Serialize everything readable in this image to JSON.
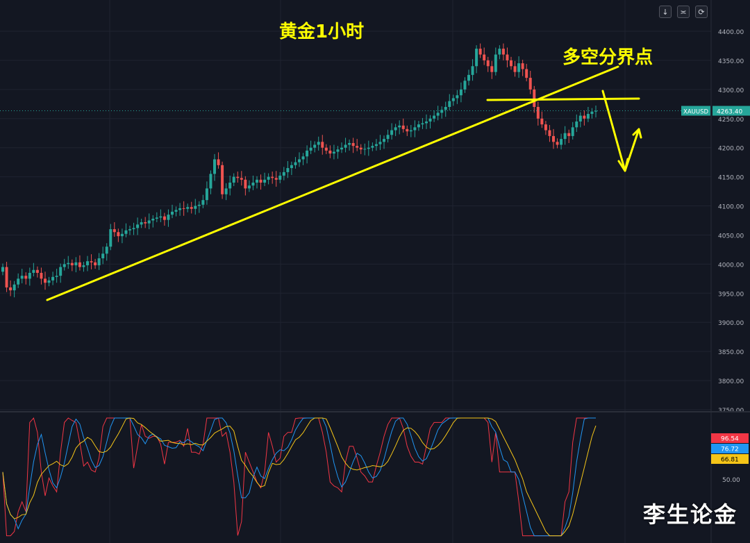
{
  "chart_data": [
    {
      "type": "candlestick",
      "title": "黄金1小时",
      "symbol": "XAUUSD",
      "last_price": "4263.40",
      "y_ticks": [
        "4400.00",
        "4350.00",
        "4300.00",
        "4250.00",
        "4200.00",
        "4150.00",
        "4100.00",
        "4050.00",
        "4000.00",
        "3950.00",
        "3900.00",
        "3850.00",
        "3800.00",
        "3750.00"
      ],
      "ylim": [
        3750,
        4400
      ],
      "grid": true,
      "closes": [
        3995,
        3960,
        3955,
        3965,
        3975,
        3980,
        3975,
        3985,
        3990,
        3985,
        3975,
        3968,
        3972,
        3978,
        3980,
        3995,
        4000,
        4002,
        3998,
        4003,
        3995,
        3998,
        4005,
        4003,
        3998,
        4010,
        4018,
        4030,
        4060,
        4055,
        4048,
        4052,
        4058,
        4060,
        4062,
        4068,
        4072,
        4070,
        4075,
        4078,
        4080,
        4082,
        4076,
        4085,
        4090,
        4093,
        4096,
        4095,
        4098,
        4095,
        4100,
        4102,
        4110,
        4130,
        4155,
        4180,
        4170,
        4120,
        4130,
        4140,
        4150,
        4148,
        4145,
        4130,
        4135,
        4140,
        4145,
        4140,
        4145,
        4150,
        4148,
        4145,
        4152,
        4158,
        4165,
        4170,
        4175,
        4180,
        4185,
        4195,
        4200,
        4205,
        4210,
        4200,
        4195,
        4190,
        4193,
        4197,
        4200,
        4205,
        4208,
        4203,
        4200,
        4197,
        4198,
        4200,
        4203,
        4206,
        4210,
        4215,
        4222,
        4230,
        4235,
        4238,
        4232,
        4228,
        4230,
        4235,
        4240,
        4242,
        4245,
        4250,
        4255,
        4260,
        4265,
        4270,
        4280,
        4285,
        4290,
        4300,
        4315,
        4325,
        4340,
        4370,
        4360,
        4350,
        4340,
        4330,
        4360,
        4370,
        4360,
        4350,
        4340,
        4330,
        4345,
        4335,
        4320,
        4300,
        4270,
        4250,
        4240,
        4230,
        4220,
        4210,
        4205,
        4215,
        4225,
        4220,
        4235,
        4245,
        4255,
        4250,
        4258,
        4262,
        4263.4
      ],
      "lower_panel": {
        "tick": "50.00",
        "values": [
          "96.54",
          "76.72",
          "66.81"
        ],
        "colors": [
          "#f23645",
          "#2196f3",
          "#f5c518"
        ]
      }
    }
  ],
  "annotations": {
    "trend_label": "多空分界点"
  },
  "watermark": "李生论金",
  "toolbar": {
    "down_icon": "↓",
    "expand_icon": "≍",
    "reset_icon": "⟳"
  }
}
